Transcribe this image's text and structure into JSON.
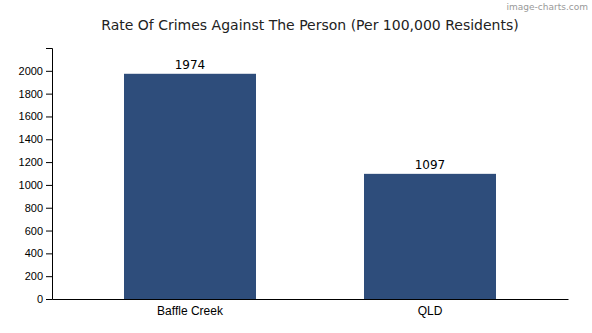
{
  "chart_data": {
    "type": "bar",
    "title": "Rate Of Crimes Against The Person (Per 100,000 Residents)",
    "categories": [
      "Baffle Creek",
      "QLD"
    ],
    "values": [
      1974,
      1097
    ],
    "color": "#2e4d7b",
    "ylim": [
      0,
      2200
    ],
    "yticks": [
      0,
      200,
      400,
      600,
      800,
      1000,
      1200,
      1400,
      1600,
      1800,
      2000
    ],
    "grid": false,
    "data_labels": true,
    "annotations": [
      "image-charts.com"
    ]
  }
}
